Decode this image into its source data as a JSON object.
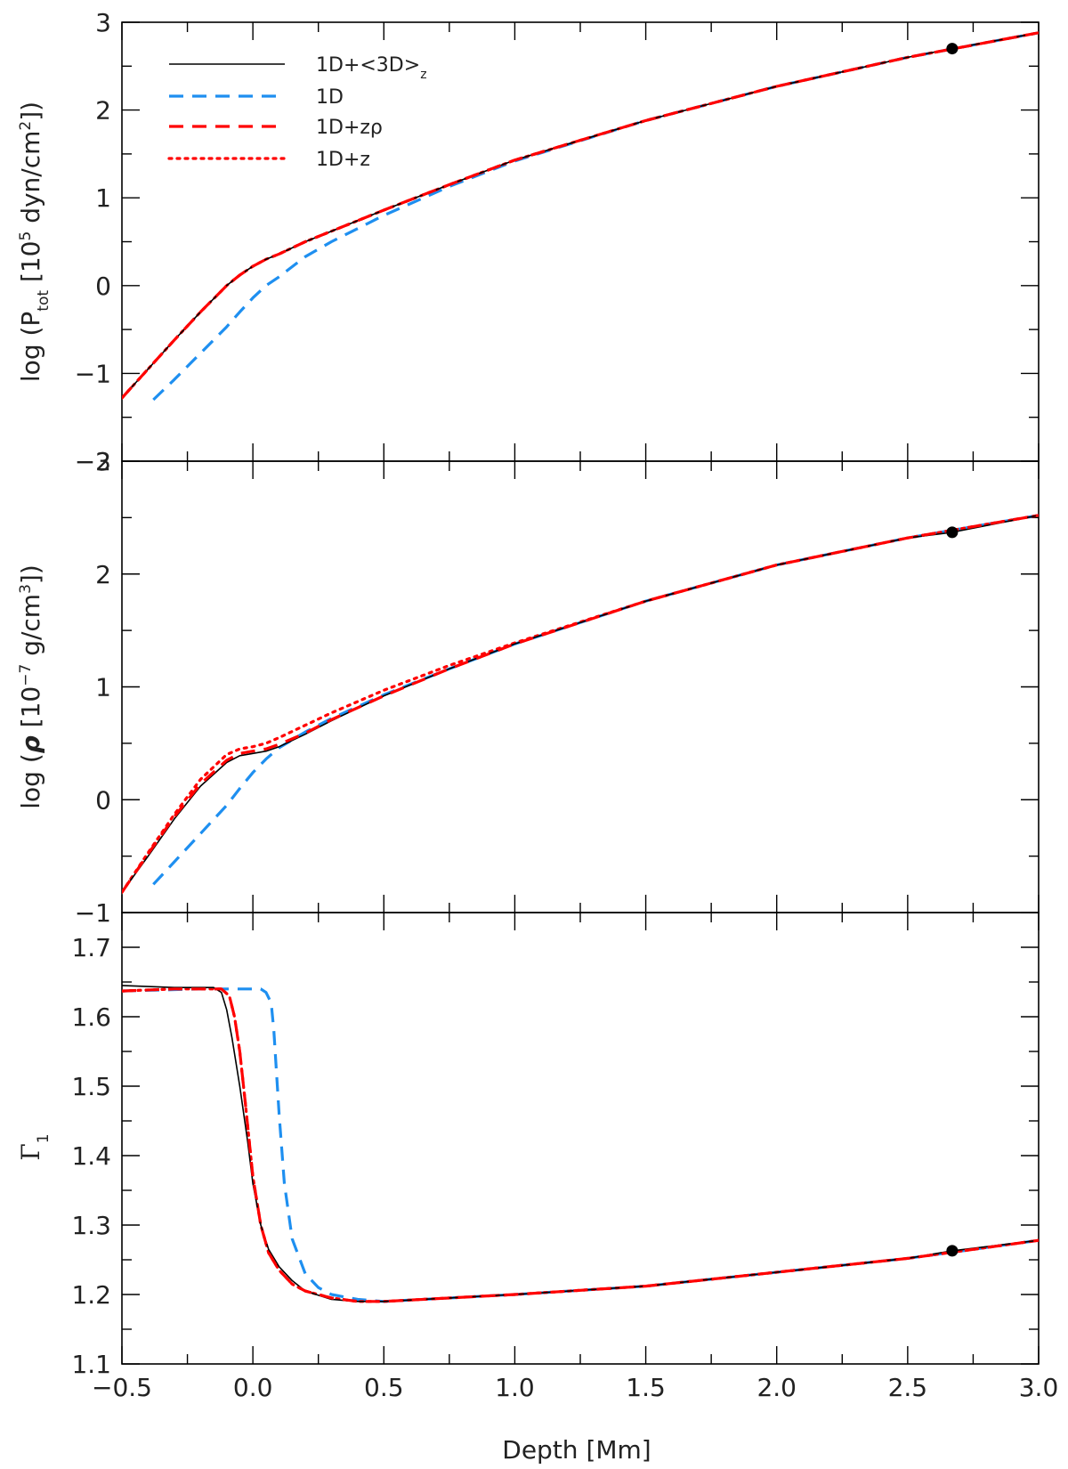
{
  "figure": {
    "xlabel": "Depth [Mm]",
    "xlim": [
      -0.5,
      3.0
    ],
    "xticks": [
      "−0.5",
      "0.0",
      "0.5",
      "1.0",
      "1.5",
      "2.0",
      "2.5",
      "3.0"
    ],
    "xtick_values": [
      -0.5,
      0.0,
      0.5,
      1.0,
      1.5,
      2.0,
      2.5,
      3.0
    ]
  },
  "legend": {
    "items": [
      {
        "text": "1D+<3D>",
        "sub": "z",
        "style": "solid",
        "color": "#000000"
      },
      {
        "text": "1D",
        "sub": "",
        "style": "dashed",
        "color": "#1e8ff0"
      },
      {
        "text": "1D+zρ",
        "sub": "",
        "style": "dashed",
        "color": "#ff0000"
      },
      {
        "text": "1D+z",
        "sub": "",
        "style": "dotted",
        "color": "#ff0000"
      }
    ]
  },
  "colors": {
    "black": "#000000",
    "blue": "#1e8ff0",
    "red": "#ff0000"
  },
  "chart_data": [
    {
      "type": "line",
      "panel": "top",
      "ylabel": "log (P_tot [10^5 dyn/cm^2])",
      "ylabel_parts": {
        "pre": "log (P",
        "sub": "tot",
        "mid": " [10",
        "sup": "5",
        "post": " dyn/cm",
        "sup2": "2",
        "end": "])"
      },
      "ylim": [
        -2,
        3
      ],
      "yticks": [
        "3",
        "2",
        "1",
        "0",
        "−1",
        "−2"
      ],
      "ytick_values": [
        3,
        2,
        1,
        0,
        -1,
        -2
      ],
      "marker": {
        "x": 2.67,
        "y": 2.7
      },
      "series": [
        {
          "name": "1D+<3D>z",
          "style": "solid",
          "x": [
            -0.5,
            -0.4,
            -0.3,
            -0.2,
            -0.1,
            -0.05,
            0.0,
            0.05,
            0.1,
            0.2,
            0.3,
            0.5,
            0.75,
            1.0,
            1.5,
            2.0,
            2.5,
            2.67,
            3.0
          ],
          "y": [
            -1.28,
            -0.95,
            -0.62,
            -0.3,
            0.0,
            0.12,
            0.22,
            0.3,
            0.36,
            0.5,
            0.62,
            0.86,
            1.15,
            1.43,
            1.88,
            2.27,
            2.6,
            2.7,
            2.88
          ]
        },
        {
          "name": "1D",
          "style": "dashed",
          "x": [
            -0.38,
            -0.3,
            -0.2,
            -0.1,
            -0.05,
            0.0,
            0.05,
            0.1,
            0.2,
            0.3,
            0.5,
            0.75,
            1.0,
            1.5,
            2.0,
            2.5,
            3.0
          ],
          "y": [
            -1.3,
            -1.07,
            -0.77,
            -0.47,
            -0.3,
            -0.14,
            0.0,
            0.1,
            0.33,
            0.5,
            0.8,
            1.13,
            1.42,
            1.88,
            2.27,
            2.6,
            2.88
          ]
        },
        {
          "name": "1D+zρ",
          "style": "dashed",
          "x": [
            -0.5,
            -0.4,
            -0.3,
            -0.2,
            -0.1,
            -0.05,
            0.0,
            0.05,
            0.1,
            0.2,
            0.3,
            0.5,
            0.75,
            1.0,
            1.5,
            2.0,
            2.5,
            3.0
          ],
          "y": [
            -1.28,
            -0.95,
            -0.62,
            -0.3,
            0.0,
            0.12,
            0.22,
            0.3,
            0.36,
            0.5,
            0.62,
            0.86,
            1.15,
            1.43,
            1.88,
            2.27,
            2.6,
            2.88
          ]
        },
        {
          "name": "1D+z",
          "style": "dotted",
          "x": [
            -0.5,
            -0.4,
            -0.3,
            -0.2,
            -0.1,
            -0.05,
            0.0,
            0.05,
            0.1,
            0.2,
            0.3,
            0.5,
            0.75,
            1.0,
            1.5,
            2.0,
            2.5,
            3.0
          ],
          "y": [
            -1.28,
            -0.95,
            -0.62,
            -0.3,
            0.0,
            0.12,
            0.22,
            0.3,
            0.36,
            0.5,
            0.62,
            0.86,
            1.15,
            1.43,
            1.88,
            2.27,
            2.6,
            2.88
          ]
        }
      ]
    },
    {
      "type": "line",
      "panel": "middle",
      "ylabel": "log (ρ [10^-7 g/cm^3])",
      "ylabel_parts": {
        "pre": "log (",
        "rho": "ρ",
        "mid": " [10",
        "sup": "−7",
        "post": " g/cm",
        "sup2": "3",
        "end": "])"
      },
      "ylim": [
        -1,
        3
      ],
      "yticks": [
        "3",
        "2",
        "1",
        "0",
        "−1"
      ],
      "ytick_values": [
        3,
        2,
        1,
        0,
        -1
      ],
      "marker": {
        "x": 2.67,
        "y": 2.37
      },
      "series": [
        {
          "name": "1D+<3D>z",
          "style": "solid",
          "x": [
            -0.5,
            -0.4,
            -0.3,
            -0.2,
            -0.1,
            -0.05,
            0.0,
            0.05,
            0.1,
            0.2,
            0.3,
            0.5,
            0.75,
            1.0,
            1.5,
            2.0,
            2.5,
            2.67,
            3.0
          ],
          "y": [
            -0.82,
            -0.5,
            -0.17,
            0.12,
            0.33,
            0.39,
            0.41,
            0.43,
            0.47,
            0.58,
            0.7,
            0.92,
            1.16,
            1.38,
            1.76,
            2.08,
            2.32,
            2.37,
            2.52
          ]
        },
        {
          "name": "1D",
          "style": "dashed",
          "x": [
            -0.38,
            -0.3,
            -0.2,
            -0.1,
            -0.05,
            0.0,
            0.05,
            0.1,
            0.2,
            0.3,
            0.5,
            0.75,
            1.0,
            1.5,
            2.0,
            2.5,
            3.0
          ],
          "y": [
            -0.75,
            -0.55,
            -0.3,
            -0.05,
            0.1,
            0.24,
            0.36,
            0.46,
            0.6,
            0.72,
            0.93,
            1.16,
            1.38,
            1.76,
            2.08,
            2.32,
            2.52
          ]
        },
        {
          "name": "1D+zρ",
          "style": "dashed",
          "x": [
            -0.5,
            -0.4,
            -0.3,
            -0.2,
            -0.1,
            -0.05,
            0.0,
            0.05,
            0.1,
            0.2,
            0.3,
            0.5,
            0.75,
            1.0,
            1.5,
            2.0,
            2.5,
            3.0
          ],
          "y": [
            -0.82,
            -0.48,
            -0.15,
            0.14,
            0.35,
            0.41,
            0.43,
            0.45,
            0.49,
            0.59,
            0.71,
            0.92,
            1.16,
            1.38,
            1.76,
            2.08,
            2.32,
            2.52
          ]
        },
        {
          "name": "1D+z",
          "style": "dotted",
          "x": [
            -0.5,
            -0.4,
            -0.3,
            -0.2,
            -0.1,
            -0.05,
            0.0,
            0.05,
            0.1,
            0.2,
            0.3,
            0.5,
            0.75,
            1.0,
            1.5,
            2.0,
            2.5,
            3.0
          ],
          "y": [
            -0.82,
            -0.47,
            -0.13,
            0.18,
            0.4,
            0.45,
            0.47,
            0.5,
            0.55,
            0.66,
            0.77,
            0.97,
            1.19,
            1.39,
            1.76,
            2.08,
            2.32,
            2.52
          ]
        }
      ]
    },
    {
      "type": "line",
      "panel": "bottom",
      "ylabel": "Γ1",
      "ylabel_parts": {
        "pre": "Γ",
        "sub": "1"
      },
      "ylim": [
        1.1,
        1.75
      ],
      "yticks": [
        "1.7",
        "1.6",
        "1.5",
        "1.4",
        "1.3",
        "1.2",
        "1.1"
      ],
      "ytick_values": [
        1.7,
        1.6,
        1.5,
        1.4,
        1.3,
        1.2,
        1.1
      ],
      "marker": {
        "x": 2.67,
        "y": 1.263
      },
      "series": [
        {
          "name": "1D+<3D>z",
          "style": "solid",
          "x": [
            -0.5,
            -0.3,
            -0.15,
            -0.12,
            -0.1,
            -0.08,
            -0.05,
            -0.02,
            0.0,
            0.03,
            0.06,
            0.1,
            0.15,
            0.2,
            0.3,
            0.4,
            0.5,
            0.75,
            1.0,
            1.5,
            2.0,
            2.5,
            2.67,
            3.0
          ],
          "y": [
            1.645,
            1.642,
            1.642,
            1.635,
            1.61,
            1.57,
            1.5,
            1.42,
            1.36,
            1.3,
            1.265,
            1.24,
            1.22,
            1.205,
            1.193,
            1.19,
            1.19,
            1.195,
            1.2,
            1.212,
            1.232,
            1.252,
            1.263,
            1.278
          ]
        },
        {
          "name": "1D",
          "style": "dashed",
          "x": [
            -0.5,
            -0.2,
            0.0,
            0.03,
            0.05,
            0.07,
            0.08,
            0.1,
            0.12,
            0.15,
            0.2,
            0.25,
            0.3,
            0.4,
            0.5,
            1.0,
            1.5,
            2.0,
            2.5,
            3.0
          ],
          "y": [
            1.637,
            1.64,
            1.64,
            1.64,
            1.635,
            1.62,
            1.58,
            1.46,
            1.36,
            1.28,
            1.23,
            1.21,
            1.2,
            1.193,
            1.19,
            1.2,
            1.212,
            1.232,
            1.252,
            1.278
          ]
        },
        {
          "name": "1D+zρ",
          "style": "dashed",
          "x": [
            -0.5,
            -0.3,
            -0.12,
            -0.09,
            -0.07,
            -0.05,
            -0.03,
            0.0,
            0.03,
            0.06,
            0.1,
            0.15,
            0.2,
            0.3,
            0.4,
            0.5,
            1.0,
            1.5,
            2.0,
            2.5,
            3.0
          ],
          "y": [
            1.637,
            1.64,
            1.64,
            1.63,
            1.6,
            1.55,
            1.48,
            1.37,
            1.3,
            1.26,
            1.235,
            1.215,
            1.205,
            1.195,
            1.19,
            1.19,
            1.2,
            1.212,
            1.232,
            1.252,
            1.278
          ]
        },
        {
          "name": "1D+z",
          "style": "dotted",
          "x": [
            -0.5,
            -0.3,
            -0.12,
            -0.09,
            -0.07,
            -0.05,
            -0.03,
            0.0,
            0.03,
            0.06,
            0.1,
            0.15,
            0.2,
            0.3,
            0.4,
            0.5,
            1.0,
            1.5,
            2.0,
            2.5,
            3.0
          ],
          "y": [
            1.637,
            1.64,
            1.64,
            1.63,
            1.6,
            1.55,
            1.48,
            1.37,
            1.3,
            1.26,
            1.235,
            1.215,
            1.205,
            1.195,
            1.19,
            1.19,
            1.2,
            1.212,
            1.232,
            1.252,
            1.278
          ]
        }
      ]
    }
  ]
}
